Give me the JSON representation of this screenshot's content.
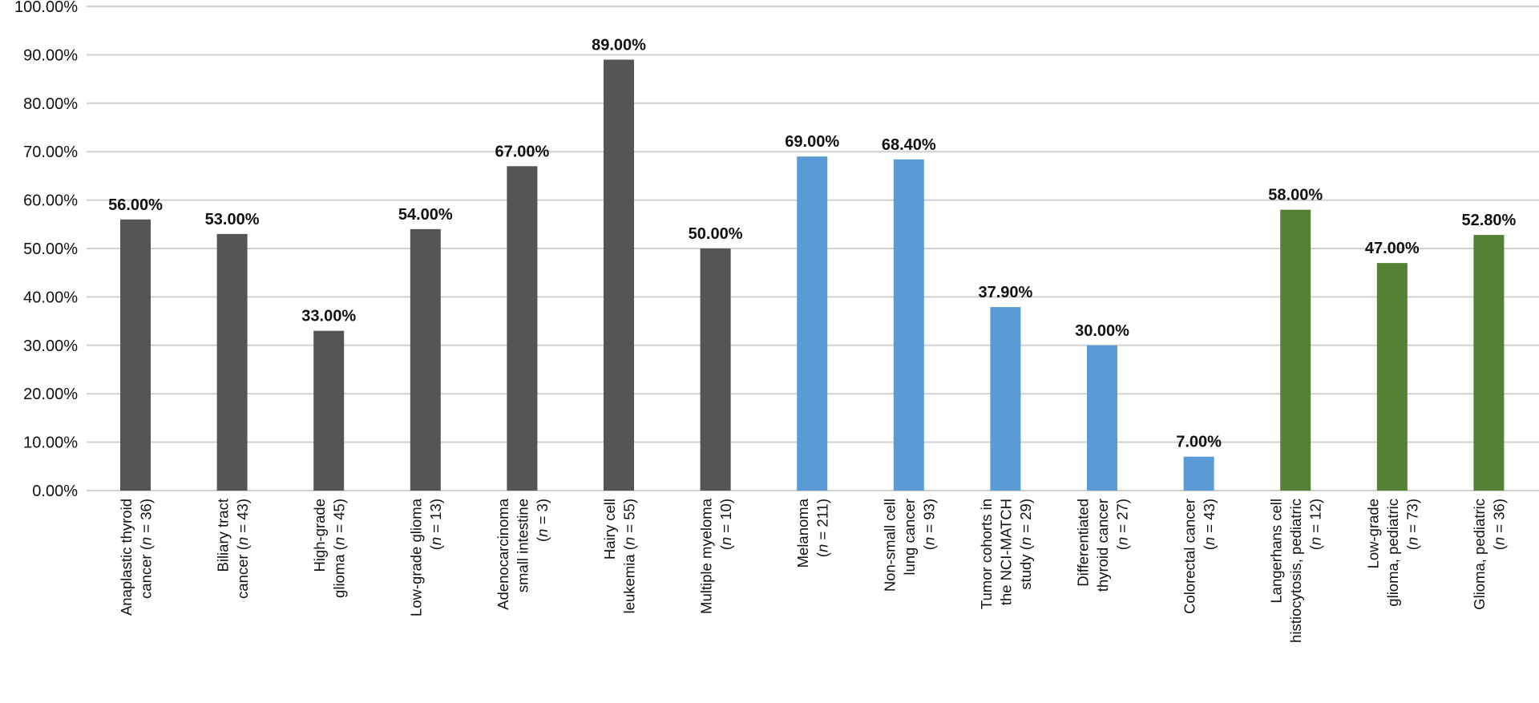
{
  "chart_data": {
    "type": "bar",
    "title": "",
    "xlabel": "",
    "ylabel": "",
    "ylim": [
      0,
      100
    ],
    "yticks": [
      0,
      10,
      20,
      30,
      40,
      50,
      60,
      70,
      80,
      90,
      100
    ],
    "ytick_labels": [
      "0.00%",
      "10.00%",
      "20.00%",
      "30.00%",
      "40.00%",
      "50.00%",
      "60.00%",
      "70.00%",
      "80.00%",
      "90.00%",
      "100.00%"
    ],
    "grid": true,
    "colors": {
      "gray": "#555555",
      "blue": "#5b9bd5",
      "green": "#548235"
    },
    "bars": [
      {
        "lines": [
          [
            "Anaplastic thyroid"
          ],
          [
            "cancer (",
            {
              "i": "n"
            },
            " = 36)"
          ]
        ],
        "value": 56.0,
        "label": "56.00%",
        "color": "gray"
      },
      {
        "lines": [
          [
            "Biliary tract"
          ],
          [
            "cancer (",
            {
              "i": "n"
            },
            " = 43)"
          ]
        ],
        "value": 53.0,
        "label": "53.00%",
        "color": "gray"
      },
      {
        "lines": [
          [
            "High-grade"
          ],
          [
            "glioma (",
            {
              "i": "n"
            },
            " = 45)"
          ]
        ],
        "value": 33.0,
        "label": "33.00%",
        "color": "gray"
      },
      {
        "lines": [
          [
            "Low-grade glioma"
          ],
          [
            "(",
            {
              "i": "n"
            },
            " = 13)"
          ]
        ],
        "value": 54.0,
        "label": "54.00%",
        "color": "gray"
      },
      {
        "lines": [
          [
            "Adenocarcinoma"
          ],
          [
            "small intestine"
          ],
          [
            "(",
            {
              "i": "n"
            },
            " = 3)"
          ]
        ],
        "value": 67.0,
        "label": "67.00%",
        "color": "gray"
      },
      {
        "lines": [
          [
            "Hairy cell"
          ],
          [
            "leukemia (",
            {
              "i": "n"
            },
            " = 55)"
          ]
        ],
        "value": 89.0,
        "label": "89.00%",
        "color": "gray"
      },
      {
        "lines": [
          [
            "Multiple myeloma"
          ],
          [
            "(",
            {
              "i": "n"
            },
            " = 10)"
          ]
        ],
        "value": 50.0,
        "label": "50.00%",
        "color": "gray"
      },
      {
        "lines": [
          [
            "Melanoma"
          ],
          [
            "(",
            {
              "i": "n"
            },
            " = 211)"
          ]
        ],
        "value": 69.0,
        "label": "69.00%",
        "color": "blue"
      },
      {
        "lines": [
          [
            "Non-small cell"
          ],
          [
            "lung cancer"
          ],
          [
            "(",
            {
              "i": "n"
            },
            " = 93)"
          ]
        ],
        "value": 68.4,
        "label": "68.40%",
        "color": "blue"
      },
      {
        "lines": [
          [
            "Tumor cohorts in"
          ],
          [
            "the NCI-MATCH"
          ],
          [
            "study (",
            {
              "i": "n"
            },
            " = 29)"
          ]
        ],
        "value": 37.9,
        "label": "37.90%",
        "color": "blue"
      },
      {
        "lines": [
          [
            "Differentiated"
          ],
          [
            "thyroid cancer"
          ],
          [
            "(",
            {
              "i": "n"
            },
            " = 27)"
          ]
        ],
        "value": 30.0,
        "label": "30.00%",
        "color": "blue"
      },
      {
        "lines": [
          [
            "Colorectal cancer"
          ],
          [
            "(",
            {
              "i": "n"
            },
            " = 43)"
          ]
        ],
        "value": 7.0,
        "label": "7.00%",
        "color": "blue"
      },
      {
        "lines": [
          [
            "Langerhans cell"
          ],
          [
            "histiocytosis, pediatric"
          ],
          [
            "(",
            {
              "i": "n"
            },
            " = 12)"
          ]
        ],
        "value": 58.0,
        "label": "58.00%",
        "color": "green"
      },
      {
        "lines": [
          [
            "Low-grade"
          ],
          [
            "glioma, pediatric"
          ],
          [
            "(",
            {
              "i": "n"
            },
            " = 73)"
          ]
        ],
        "value": 47.0,
        "label": "47.00%",
        "color": "green"
      },
      {
        "lines": [
          [
            "Glioma, pediatric"
          ],
          [
            "(",
            {
              "i": "n"
            },
            " = 36)"
          ]
        ],
        "value": 52.8,
        "label": "52.80%",
        "color": "green"
      }
    ]
  }
}
